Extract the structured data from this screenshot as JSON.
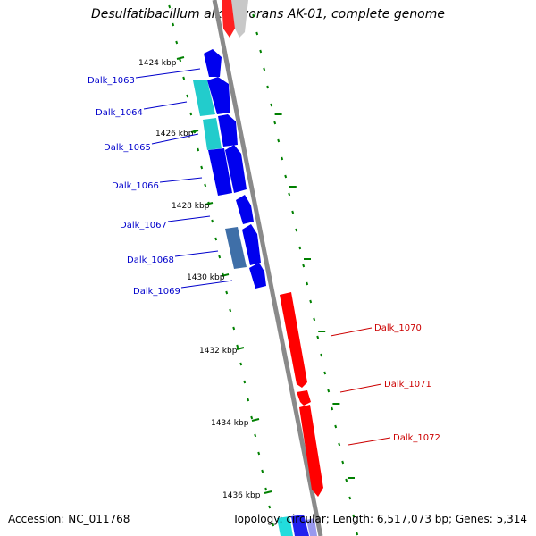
{
  "title": "Desulfatibacillum alkenivorans AK-01, complete genome",
  "accession": "Accession: NC_011768",
  "topology": "Topology: circular; Length: 6,517,073 bp; Genes: 5,314",
  "colors": {
    "backbone": "#808080",
    "minus_strand_gene": "#0000ee",
    "plus_strand_gene": "#ff0000",
    "cyan_gene": "#22cccc",
    "steel_gene": "#4477aa",
    "grey_gene": "#b0b0b0",
    "ticks": "#008000",
    "minus_label": "#0000cc",
    "plus_label": "#cc0000"
  },
  "kbp_ticks": [
    "1424 kbp",
    "1426 kbp",
    "1428 kbp",
    "1430 kbp",
    "1432 kbp",
    "1434 kbp",
    "1436 kbp"
  ],
  "genes_minus": [
    "Dalk_1063",
    "Dalk_1064",
    "Dalk_1065",
    "Dalk_1066",
    "Dalk_1067",
    "Dalk_1068",
    "Dalk_1069"
  ],
  "genes_plus": [
    "Dalk_1070",
    "Dalk_1071",
    "Dalk_1072"
  ]
}
